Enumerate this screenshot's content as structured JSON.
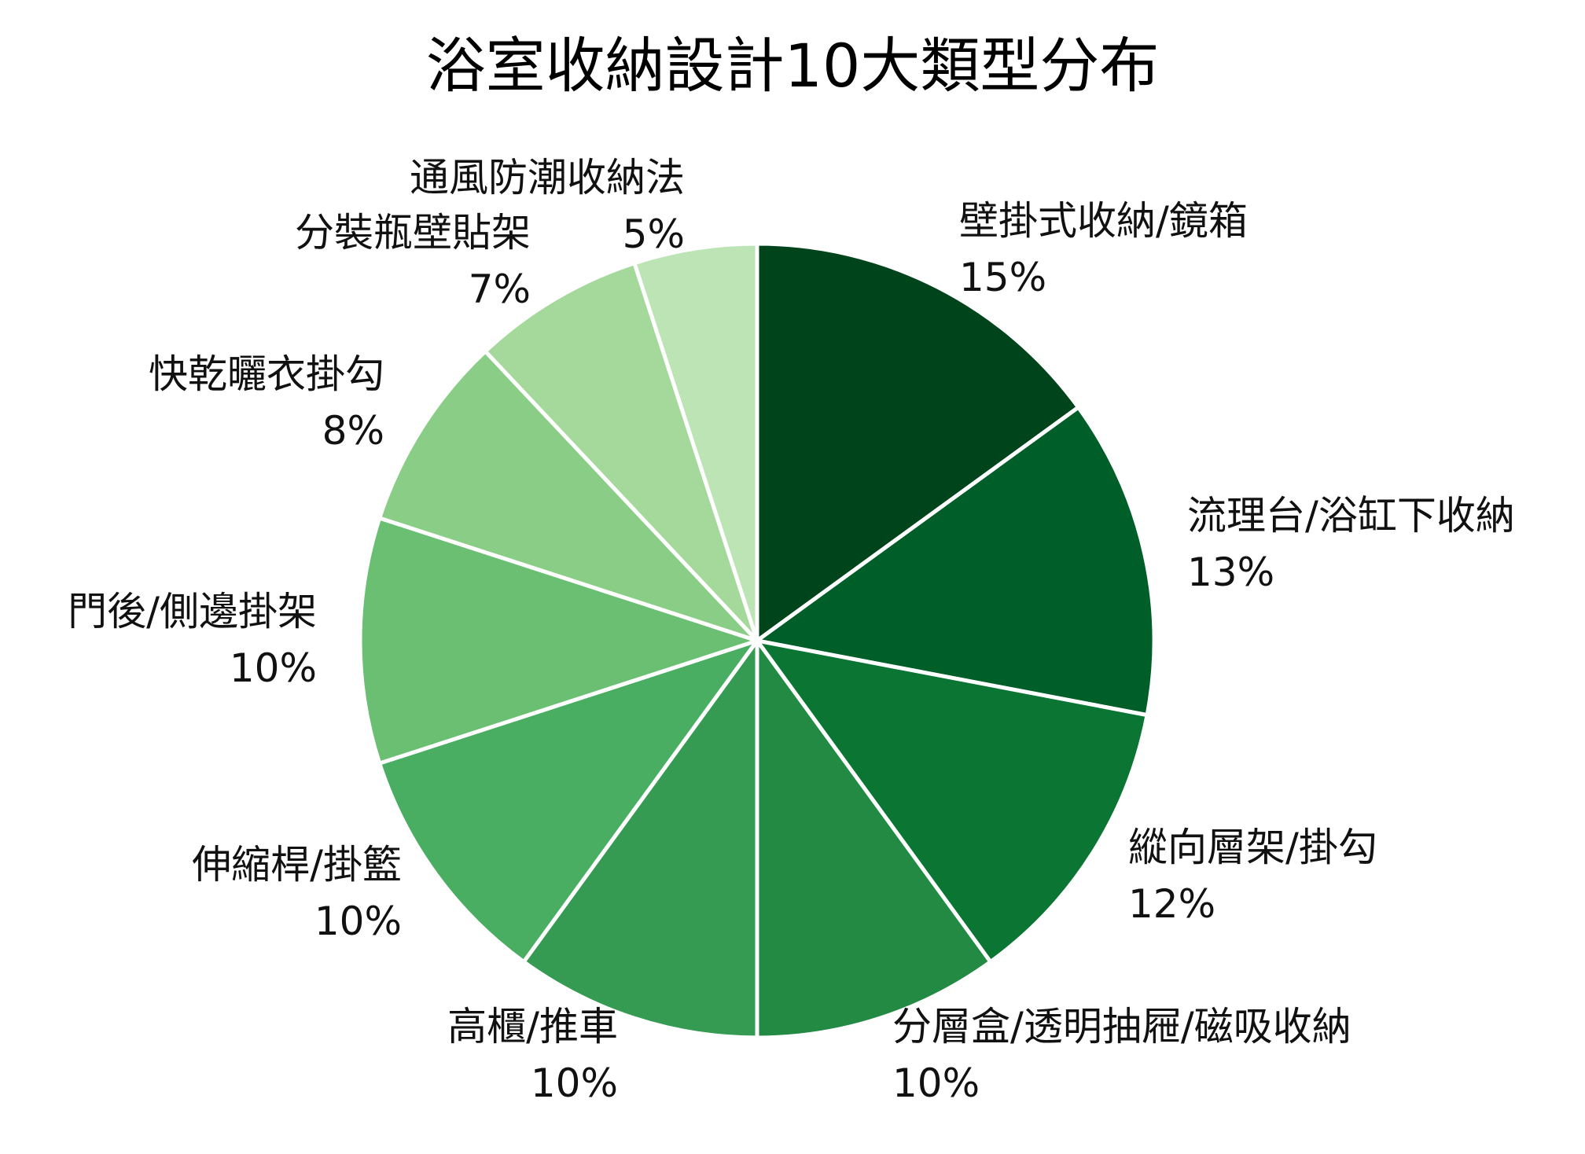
{
  "chart_data": {
    "type": "pie",
    "title": "浴室收納設計10大類型分布",
    "unit": "%",
    "slices": [
      {
        "label": "壁掛式收納/鏡箱",
        "value": 15,
        "color": "#00441b",
        "display": "15%"
      },
      {
        "label": "流理台/浴缸下收納",
        "value": 13,
        "color": "#005f29",
        "display": "13%"
      },
      {
        "label": "縱向層架/掛勾",
        "value": 12,
        "color": "#0b7533",
        "display": "12%"
      },
      {
        "label": "分層盒/透明抽屜/磁吸收納",
        "value": 10,
        "color": "#238a44",
        "display": "10%"
      },
      {
        "label": "高櫃/推車",
        "value": 10,
        "color": "#359a52",
        "display": "10%"
      },
      {
        "label": "伸縮桿/掛籃",
        "value": 10,
        "color": "#49ae62",
        "display": "10%"
      },
      {
        "label": "門後/側邊掛架",
        "value": 10,
        "color": "#6abf72",
        "display": "10%"
      },
      {
        "label": "快乾曬衣掛勾",
        "value": 8,
        "color": "#8acd86",
        "display": "8%"
      },
      {
        "label": "分裝瓶壁貼架",
        "value": 7,
        "color": "#a5d99c",
        "display": "7%"
      },
      {
        "label": "通風防潮收納法",
        "value": 5,
        "color": "#bce4b4",
        "display": "5%"
      }
    ],
    "start_angle": "12 o'clock",
    "direction": "clockwise",
    "legend": "none"
  }
}
